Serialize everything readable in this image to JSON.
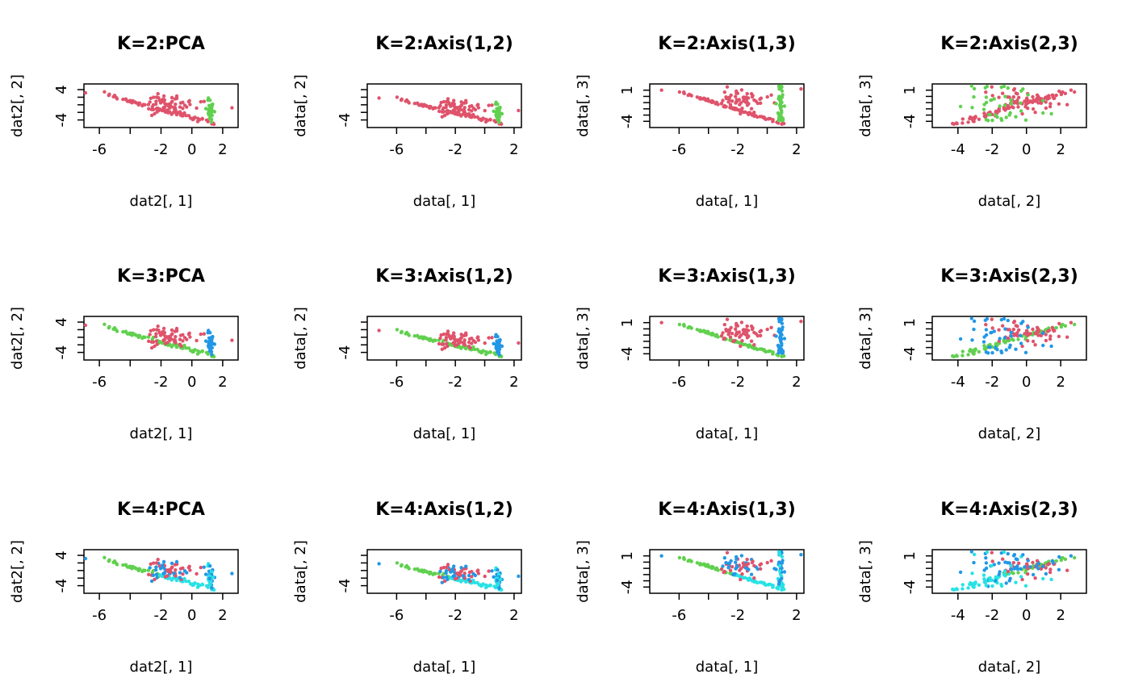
{
  "colors": {
    "cluster1": "#DF536B",
    "cluster2": "#61D04F",
    "cluster3": "#2297E6",
    "cluster4": "#28E2E5"
  },
  "chart_data": [
    {
      "type": "scatter",
      "title": "K=2:PCA",
      "xlabel": "dat2[, 1]",
      "ylabel": "dat2[, 2]",
      "xlim": [
        -7,
        3
      ],
      "ylim": [
        -6,
        5.5
      ],
      "xticks": [
        -6,
        -4,
        -2,
        0,
        2
      ],
      "xtick_labels": [
        "-6",
        "",
        "-2",
        "0",
        "2"
      ],
      "yticks": [
        -4,
        -2,
        0,
        2,
        4
      ],
      "ytick_labels": [
        "-4",
        "",
        "",
        "",
        "4"
      ],
      "k": 2
    },
    {
      "type": "scatter",
      "title": "K=2:Axis(1,2)",
      "xlabel": "data[, 1]",
      "ylabel": "data[, 2]",
      "xlim": [
        -8,
        2.5
      ],
      "ylim": [
        -6,
        5.5
      ],
      "xticks": [
        -6,
        -4,
        -2,
        0,
        2
      ],
      "xtick_labels": [
        "-6",
        "",
        "-2",
        "",
        "2"
      ],
      "yticks": [
        -4,
        -2,
        0,
        2,
        4
      ],
      "ytick_labels": [
        "-4",
        "",
        "",
        "",
        ""
      ],
      "k": 2
    },
    {
      "type": "scatter",
      "title": "K=2:Axis(1,3)",
      "xlabel": "data[, 1]",
      "ylabel": "data[, 3]",
      "xlim": [
        -8,
        2.5
      ],
      "ylim": [
        -5,
        2
      ],
      "xticks": [
        -6,
        -4,
        -2,
        0,
        2
      ],
      "xtick_labels": [
        "-6",
        "",
        "-2",
        "",
        "2"
      ],
      "yticks": [
        -4,
        -3,
        -2,
        -1,
        0,
        1
      ],
      "ytick_labels": [
        "-4",
        "",
        "",
        "",
        "",
        "1"
      ],
      "k": 2
    },
    {
      "type": "scatter",
      "title": "K=2:Axis(2,3)",
      "xlabel": "data[, 2]",
      "ylabel": "data[, 3]",
      "xlim": [
        -5.5,
        3.5
      ],
      "ylim": [
        -5,
        2
      ],
      "xticks": [
        -4,
        -2,
        0,
        2
      ],
      "xtick_labels": [
        "-4",
        "-2",
        "0",
        "2"
      ],
      "yticks": [
        -4,
        -3,
        -2,
        -1,
        0,
        1
      ],
      "ytick_labels": [
        "-4",
        "",
        "",
        "",
        "",
        "1"
      ],
      "k": 2
    },
    {
      "type": "scatter",
      "title": "K=3:PCA",
      "xlabel": "dat2[, 1]",
      "ylabel": "dat2[, 2]",
      "xlim": [
        -7,
        3
      ],
      "ylim": [
        -6,
        5.5
      ],
      "xticks": [
        -6,
        -4,
        -2,
        0,
        2
      ],
      "xtick_labels": [
        "-6",
        "",
        "-2",
        "0",
        "2"
      ],
      "yticks": [
        -4,
        -2,
        0,
        2,
        4
      ],
      "ytick_labels": [
        "-4",
        "",
        "",
        "",
        "4"
      ],
      "k": 3
    },
    {
      "type": "scatter",
      "title": "K=3:Axis(1,2)",
      "xlabel": "data[, 1]",
      "ylabel": "data[, 2]",
      "xlim": [
        -8,
        2.5
      ],
      "ylim": [
        -6,
        5.5
      ],
      "xticks": [
        -6,
        -4,
        -2,
        0,
        2
      ],
      "xtick_labels": [
        "-6",
        "",
        "-2",
        "",
        "2"
      ],
      "yticks": [
        -4,
        -2,
        0,
        2,
        4
      ],
      "ytick_labels": [
        "-4",
        "",
        "",
        "",
        ""
      ],
      "k": 3
    },
    {
      "type": "scatter",
      "title": "K=3:Axis(1,3)",
      "xlabel": "data[, 1]",
      "ylabel": "data[, 3]",
      "xlim": [
        -8,
        2.5
      ],
      "ylim": [
        -5,
        2
      ],
      "xticks": [
        -6,
        -4,
        -2,
        0,
        2
      ],
      "xtick_labels": [
        "-6",
        "",
        "-2",
        "",
        "2"
      ],
      "yticks": [
        -4,
        -3,
        -2,
        -1,
        0,
        1
      ],
      "ytick_labels": [
        "-4",
        "",
        "",
        "",
        "",
        "1"
      ],
      "k": 3
    },
    {
      "type": "scatter",
      "title": "K=3:Axis(2,3)",
      "xlabel": "data[, 2]",
      "ylabel": "data[, 3]",
      "xlim": [
        -5.5,
        3.5
      ],
      "ylim": [
        -5,
        2
      ],
      "xticks": [
        -4,
        -2,
        0,
        2
      ],
      "xtick_labels": [
        "-4",
        "-2",
        "0",
        "2"
      ],
      "yticks": [
        -4,
        -3,
        -2,
        -1,
        0,
        1
      ],
      "ytick_labels": [
        "-4",
        "",
        "",
        "",
        "",
        "1"
      ],
      "k": 3
    },
    {
      "type": "scatter",
      "title": "K=4:PCA",
      "xlabel": "dat2[, 1]",
      "ylabel": "dat2[, 2]",
      "xlim": [
        -7,
        3
      ],
      "ylim": [
        -6,
        5.5
      ],
      "xticks": [
        -6,
        -4,
        -2,
        0,
        2
      ],
      "xtick_labels": [
        "-6",
        "",
        "-2",
        "0",
        "2"
      ],
      "yticks": [
        -4,
        -2,
        0,
        2,
        4
      ],
      "ytick_labels": [
        "-4",
        "",
        "",
        "",
        "4"
      ],
      "k": 4
    },
    {
      "type": "scatter",
      "title": "K=4:Axis(1,2)",
      "xlabel": "data[, 1]",
      "ylabel": "data[, 2]",
      "xlim": [
        -8,
        2.5
      ],
      "ylim": [
        -6,
        5.5
      ],
      "xticks": [
        -6,
        -4,
        -2,
        0,
        2
      ],
      "xtick_labels": [
        "-6",
        "",
        "-2",
        "",
        "2"
      ],
      "yticks": [
        -4,
        -2,
        0,
        2,
        4
      ],
      "ytick_labels": [
        "-4",
        "",
        "",
        "",
        ""
      ],
      "k": 4
    },
    {
      "type": "scatter",
      "title": "K=4:Axis(1,3)",
      "xlabel": "data[, 1]",
      "ylabel": "data[, 3]",
      "xlim": [
        -8,
        2.5
      ],
      "ylim": [
        -5,
        2
      ],
      "xticks": [
        -6,
        -4,
        -2,
        0,
        2
      ],
      "xtick_labels": [
        "-6",
        "",
        "-2",
        "",
        "2"
      ],
      "yticks": [
        -4,
        -3,
        -2,
        -1,
        0,
        1
      ],
      "ytick_labels": [
        "-4",
        "",
        "",
        "",
        "",
        "1"
      ],
      "k": 4
    },
    {
      "type": "scatter",
      "title": "K=4:Axis(2,3)",
      "xlabel": "data[, 2]",
      "ylabel": "data[, 3]",
      "xlim": [
        -5.5,
        3.5
      ],
      "ylim": [
        -5,
        2
      ],
      "xticks": [
        -4,
        -2,
        0,
        2
      ],
      "xtick_labels": [
        "-4",
        "-2",
        "0",
        "2"
      ],
      "yticks": [
        -4,
        -3,
        -2,
        -1,
        0,
        1
      ],
      "ytick_labels": [
        "-4",
        "",
        "",
        "",
        "",
        "1"
      ],
      "k": 4
    }
  ]
}
